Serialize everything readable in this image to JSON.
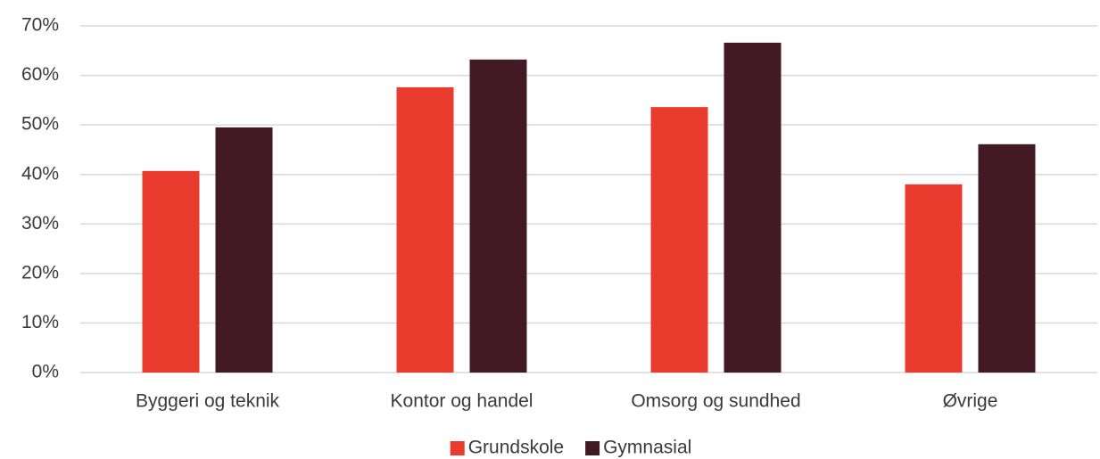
{
  "chart_data": {
    "type": "bar",
    "categories": [
      "Byggeri og teknik",
      "Kontor og handel",
      "Omsorg og sundhed",
      "Øvrige"
    ],
    "series": [
      {
        "name": "Grundskole",
        "color": "#e93b2e",
        "values": [
          40.7,
          57.6,
          53.6,
          38.0
        ]
      },
      {
        "name": "Gymnasial",
        "color": "#421a26",
        "values": [
          49.5,
          63.2,
          66.6,
          46.1
        ]
      }
    ],
    "ylim": [
      0,
      70
    ],
    "yticks": [
      {
        "value": 0,
        "label": "0%"
      },
      {
        "value": 10,
        "label": "10%"
      },
      {
        "value": 20,
        "label": "20%"
      },
      {
        "value": 30,
        "label": "30%"
      },
      {
        "value": 40,
        "label": "40%"
      },
      {
        "value": 50,
        "label": "50%"
      },
      {
        "value": 60,
        "label": "60%"
      },
      {
        "value": 70,
        "label": "70%"
      }
    ],
    "grid": true,
    "legend": "bottom"
  }
}
